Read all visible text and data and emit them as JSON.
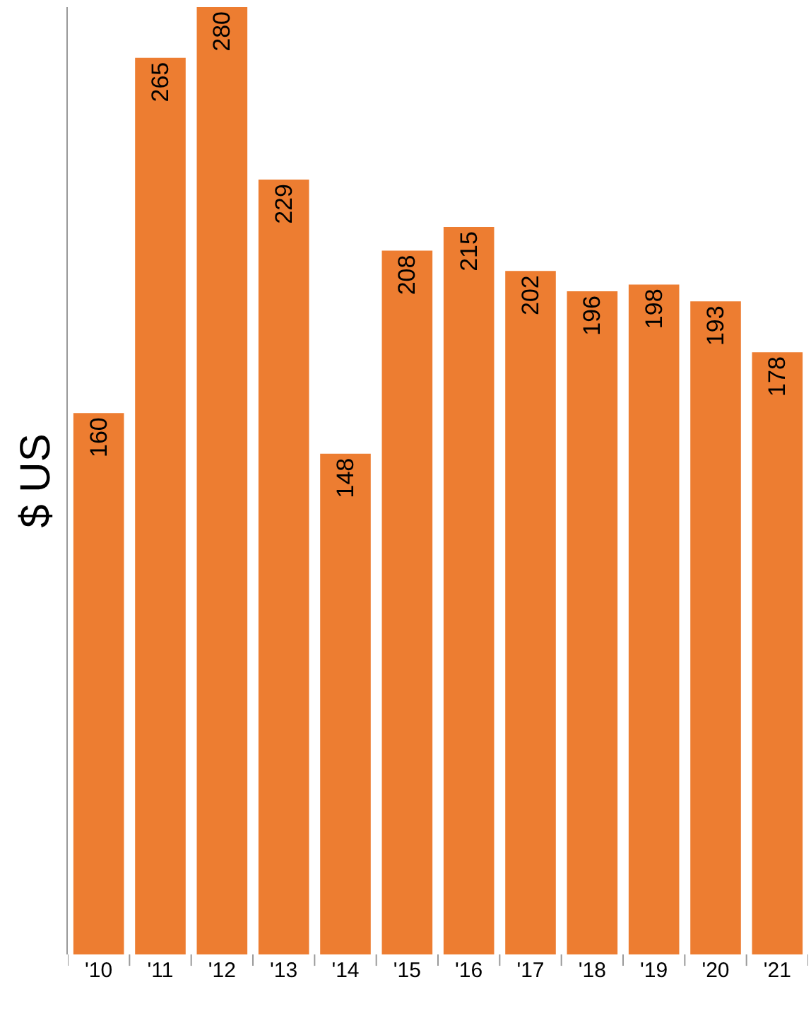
{
  "chart_data": {
    "type": "bar",
    "ylabel": "$ US",
    "categories": [
      "'10",
      "'11",
      "'12",
      "'13",
      "'14",
      "'15",
      "'16",
      "'17",
      "'18",
      "'19",
      "'20",
      "'21"
    ],
    "values": [
      160,
      265,
      280,
      229,
      148,
      208,
      215,
      202,
      196,
      198,
      193,
      178
    ],
    "color": "#ed7d31",
    "data_labels": true,
    "ylim": [
      0,
      280
    ]
  }
}
